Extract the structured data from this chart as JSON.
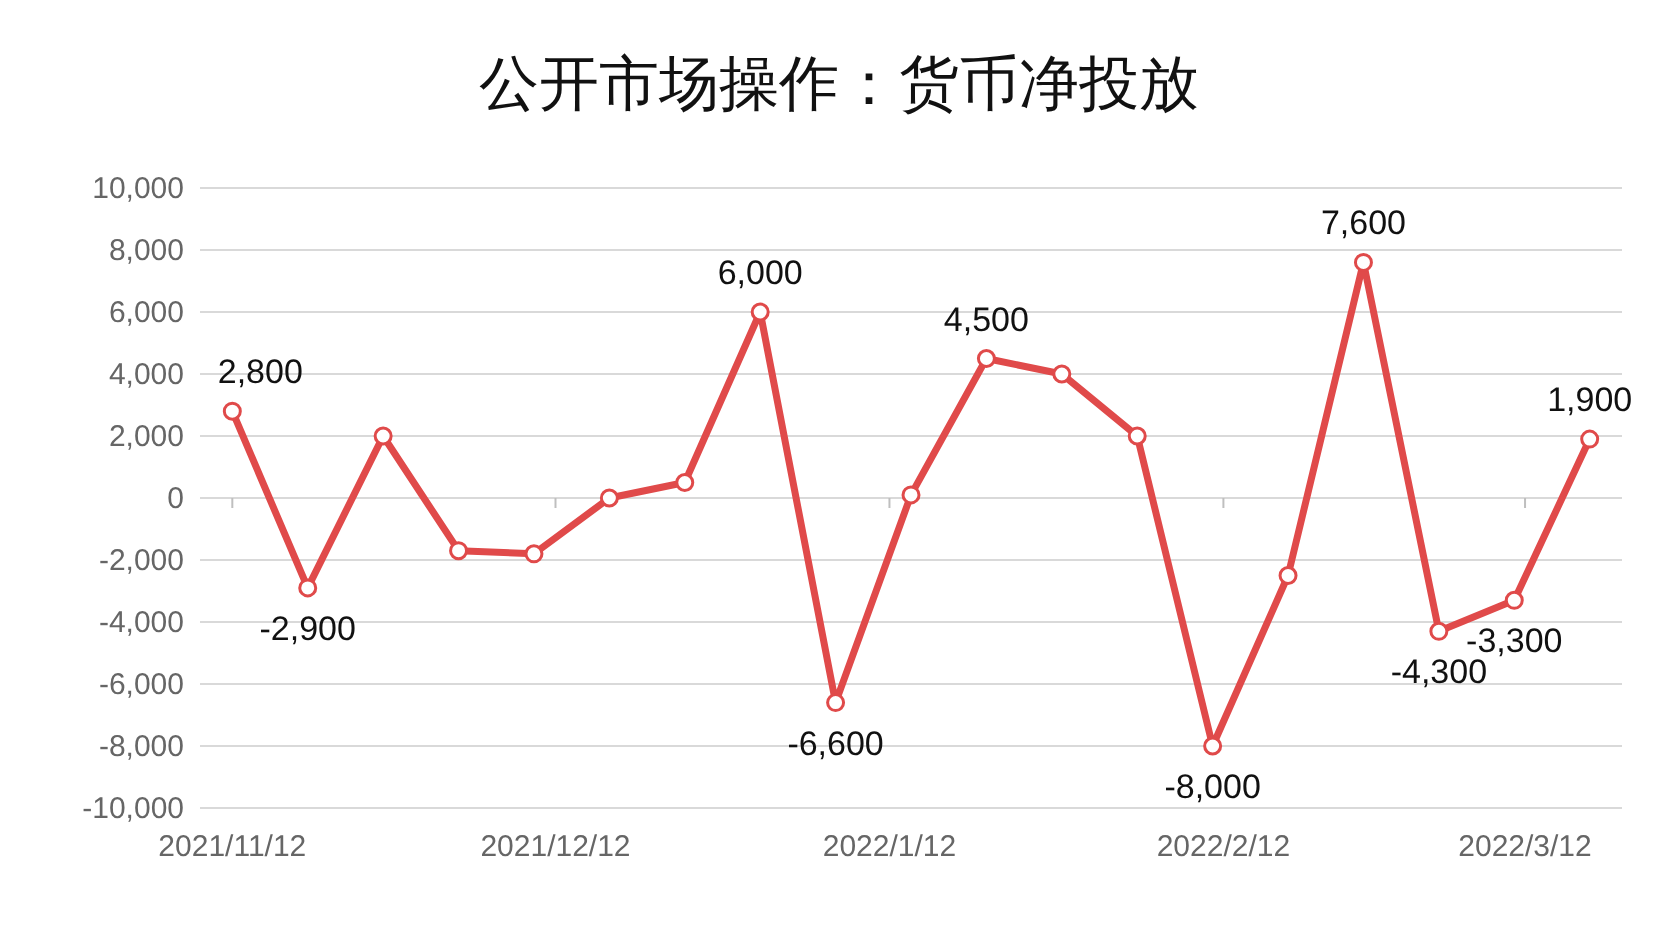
{
  "chart_data": {
    "type": "line",
    "title": "公开市场操作：货币净投放",
    "x": [
      "2021-11-12",
      "2021-11-19",
      "2021-11-26",
      "2021-12-03",
      "2021-12-10",
      "2021-12-17",
      "2021-12-24",
      "2021-12-31",
      "2022-01-07",
      "2022-01-14",
      "2022-01-21",
      "2022-01-28",
      "2022-02-04",
      "2022-02-11",
      "2022-02-18",
      "2022-02-25",
      "2022-03-04",
      "2022-03-11",
      "2022-03-18"
    ],
    "series": [
      {
        "color": "#e04a4a",
        "values": [
          2800,
          -2900,
          2000,
          -1700,
          -1800,
          0,
          500,
          6000,
          -6600,
          100,
          4500,
          4000,
          2000,
          -8000,
          -2500,
          7600,
          -4300,
          -3300,
          1900
        ],
        "value_labels": [
          "2,800",
          "-2,900",
          null,
          null,
          null,
          null,
          null,
          "6,000",
          "-6,600",
          null,
          "4,500",
          null,
          null,
          "-8,000",
          null,
          "7,600",
          "-4,300",
          "-3,300",
          "1,900"
        ]
      }
    ],
    "xlim": [
      "2021-11-09",
      "2022-03-21"
    ],
    "xticks": [
      {
        "value": "2021-11-12",
        "label": "2021/11/12"
      },
      {
        "value": "2021-12-12",
        "label": "2021/12/12"
      },
      {
        "value": "2022-01-12",
        "label": "2022/1/12"
      },
      {
        "value": "2022-02-12",
        "label": "2022/2/12"
      },
      {
        "value": "2022-03-12",
        "label": "2022/3/12"
      }
    ],
    "ylim": [
      -10000,
      10000
    ],
    "yticks": [
      {
        "value": -10000,
        "label": "-10,000"
      },
      {
        "value": -8000,
        "label": "-8,000"
      },
      {
        "value": -6000,
        "label": "-6,000"
      },
      {
        "value": -4000,
        "label": "-4,000"
      },
      {
        "value": -2000,
        "label": "-2,000"
      },
      0,
      {
        "value": 2000,
        "label": "2,000"
      },
      {
        "value": 4000,
        "label": "4,000"
      },
      {
        "value": 6000,
        "label": "6,000"
      },
      {
        "value": 8000,
        "label": "8,000"
      },
      {
        "value": 10000,
        "label": "10,000"
      }
    ],
    "grid": "y",
    "marker": "circle",
    "line_style": "solid"
  }
}
